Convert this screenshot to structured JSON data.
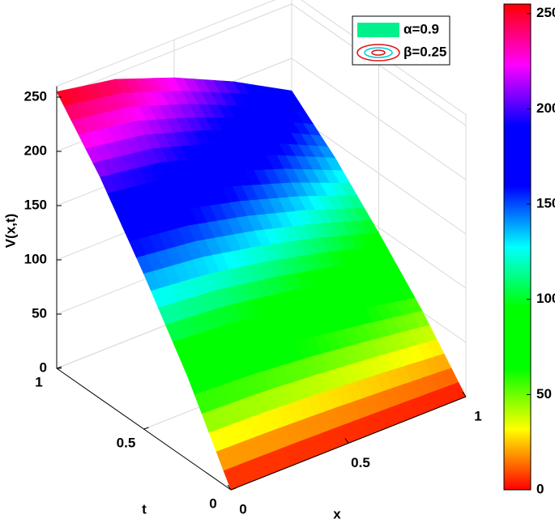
{
  "chart_data": {
    "type": "surface",
    "zlabel": "V(x,t)",
    "xlabel": "x",
    "tlabel": "t",
    "x": [
      0,
      0.25,
      0.5,
      0.75,
      1
    ],
    "t": [
      0,
      0.25,
      0.5,
      0.75,
      1
    ],
    "z": [
      [
        0,
        0,
        0,
        0,
        0
      ],
      [
        77,
        74,
        68,
        60,
        51
      ],
      [
        143,
        137,
        126,
        112,
        95
      ],
      [
        204,
        196,
        180,
        160,
        136
      ],
      [
        255,
        245,
        225,
        200,
        170
      ]
    ],
    "xlim": [
      0,
      1
    ],
    "xticks": [
      0,
      0.5,
      1
    ],
    "tlim": [
      0,
      1
    ],
    "tticks": [
      0,
      0.5,
      1
    ],
    "zlim": [
      0,
      260
    ],
    "zticks": [
      0,
      50,
      100,
      150,
      200,
      250
    ],
    "clim": [
      0,
      255
    ],
    "cticks": [
      0,
      50,
      100,
      150,
      200,
      250
    ],
    "colormap": [
      "#ff0000",
      "#ffff00",
      "#00ff00",
      "#00ff00",
      "#00ffff",
      "#0000ff",
      "#0000ff",
      "#ff00ff",
      "#ff0000"
    ],
    "grid": true,
    "legend": {
      "position": "upper right",
      "entries": [
        {
          "name": "α=0.9",
          "color": "#00f08c"
        },
        {
          "name": "β=0.25",
          "color": "#e01010"
        }
      ]
    }
  }
}
